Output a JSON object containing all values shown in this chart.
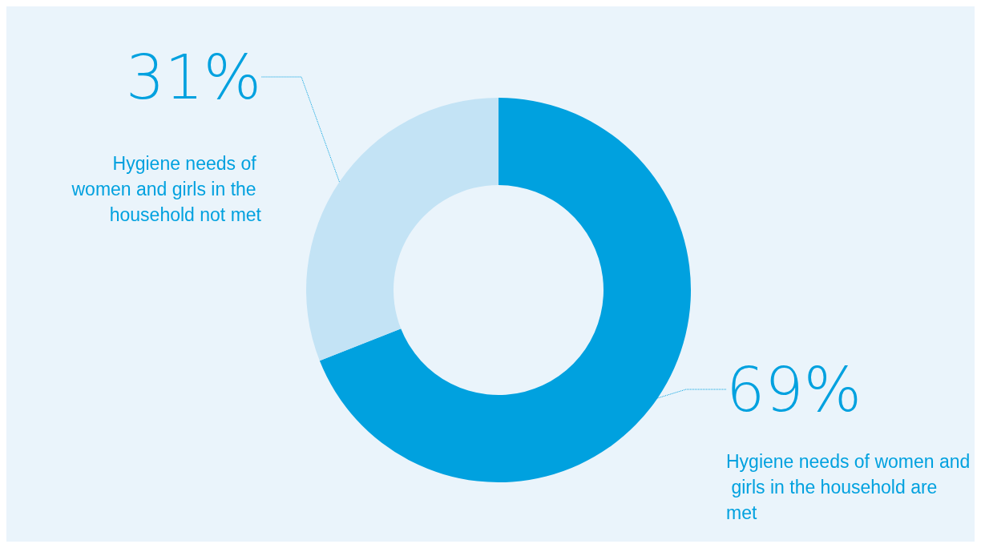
{
  "chart_data": {
    "type": "donut",
    "categories": [
      "Hygiene needs of women and girls in the household are met",
      "Hygiene needs of women and girls in the household not met"
    ],
    "values": [
      69,
      31
    ],
    "value_labels": [
      "69%",
      "31%"
    ],
    "colors": [
      "#00a1df",
      "#c3e3f5"
    ],
    "legend": false
  }
}
